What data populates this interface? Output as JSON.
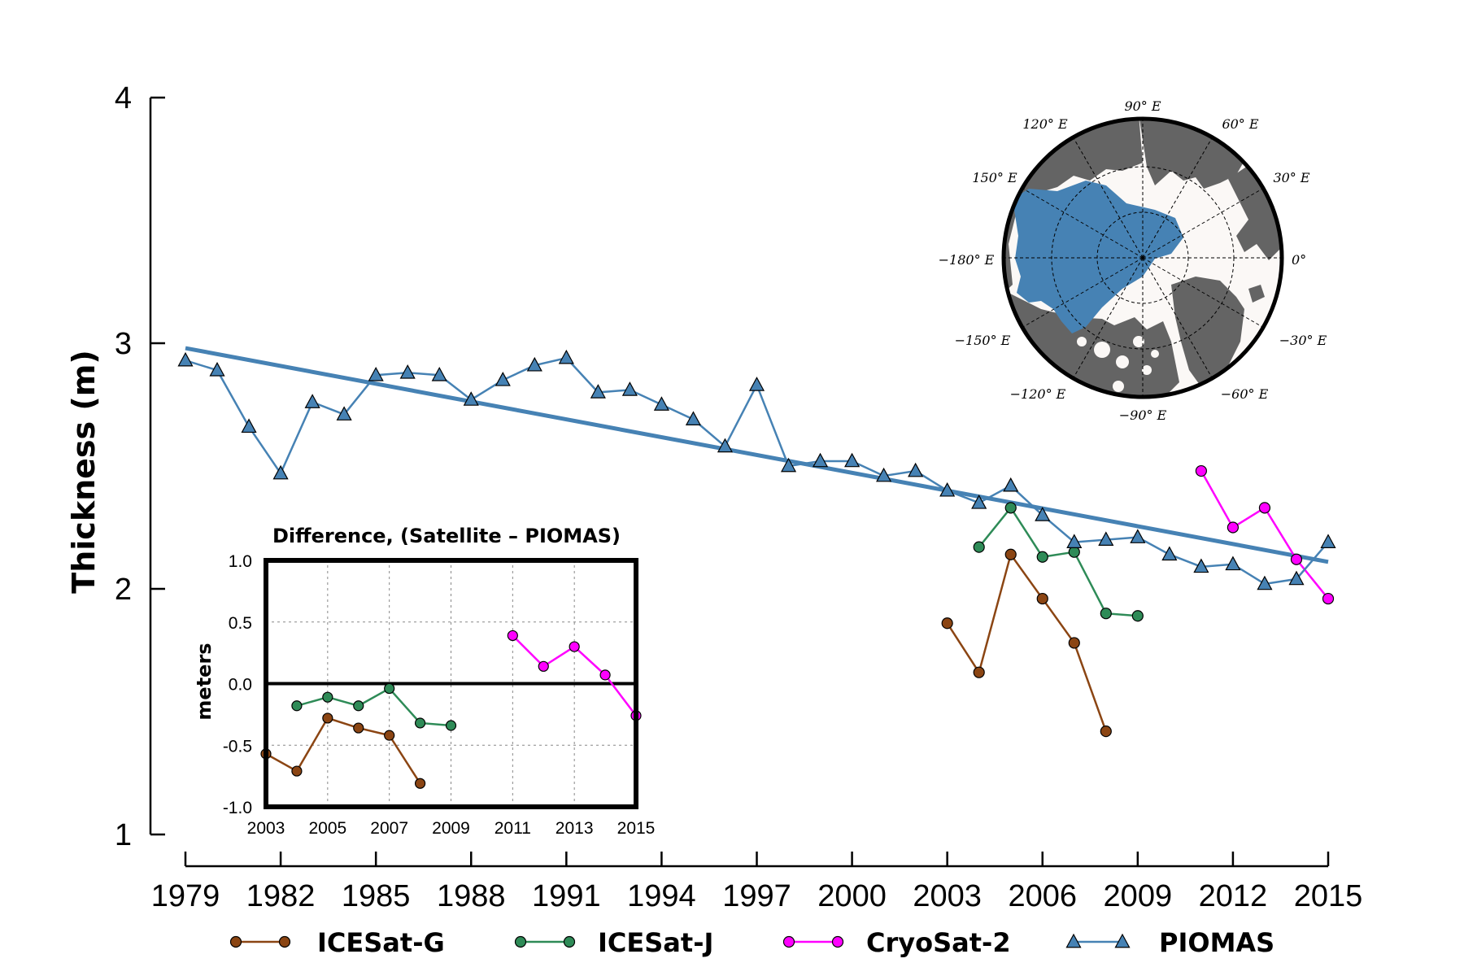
{
  "colors": {
    "piomas": "#4682b4",
    "icesat_g": "#8b4513",
    "icesat_j": "#2e8b57",
    "cryosat": "#ff00ff",
    "land": "#646464",
    "ocean": "#fbf8f6",
    "ice": "#4682b4"
  },
  "chart_data": [
    {
      "type": "line",
      "xlabel": "",
      "ylabel": "Thickness (m)",
      "xlim": [
        1979,
        2015
      ],
      "ylim": [
        1,
        4
      ],
      "xticks": [
        "1979",
        "1982",
        "1985",
        "1988",
        "1991",
        "1994",
        "1997",
        "2000",
        "2003",
        "2006",
        "2009",
        "2012",
        "2015"
      ],
      "yticks": [
        "1",
        "2",
        "3",
        "4"
      ],
      "trend": {
        "x": [
          1979,
          2015
        ],
        "y": [
          2.98,
          2.11
        ]
      },
      "series": [
        {
          "name": "ICESat-G",
          "marker": "circle",
          "x": [
            2003,
            2004,
            2005,
            2006,
            2007,
            2008
          ],
          "y": [
            1.86,
            1.66,
            2.14,
            1.96,
            1.78,
            1.42
          ]
        },
        {
          "name": "ICESat-J",
          "marker": "circle",
          "x": [
            2004,
            2005,
            2006,
            2007,
            2008,
            2009
          ],
          "y": [
            2.17,
            2.33,
            2.13,
            2.15,
            1.9,
            1.89
          ]
        },
        {
          "name": "CryoSat-2",
          "marker": "circle",
          "x": [
            2011,
            2012,
            2013,
            2014,
            2015
          ],
          "y": [
            2.48,
            2.25,
            2.33,
            2.12,
            1.96
          ]
        },
        {
          "name": "PIOMAS",
          "marker": "triangle",
          "x": [
            1979,
            1980,
            1981,
            1982,
            1983,
            1984,
            1985,
            1986,
            1987,
            1988,
            1989,
            1990,
            1991,
            1992,
            1993,
            1994,
            1995,
            1996,
            1997,
            1998,
            1999,
            2000,
            2001,
            2002,
            2003,
            2004,
            2005,
            2006,
            2007,
            2008,
            2009,
            2010,
            2011,
            2012,
            2013,
            2014,
            2015
          ],
          "y": [
            2.93,
            2.89,
            2.66,
            2.47,
            2.76,
            2.71,
            2.87,
            2.88,
            2.87,
            2.77,
            2.85,
            2.91,
            2.94,
            2.8,
            2.81,
            2.75,
            2.69,
            2.58,
            2.83,
            2.5,
            2.52,
            2.52,
            2.46,
            2.48,
            2.4,
            2.35,
            2.42,
            2.3,
            2.19,
            2.2,
            2.21,
            2.14,
            2.09,
            2.1,
            2.02,
            2.04,
            2.19
          ]
        }
      ],
      "legend": {
        "position": "bottom",
        "entries": [
          "ICESat-G",
          "ICESat-J",
          "CryoSat-2",
          "PIOMAS"
        ]
      }
    },
    {
      "type": "line",
      "title": "Difference, (Satellite – PIOMAS)",
      "ylabel": "meters",
      "xlim": [
        2003,
        2015
      ],
      "ylim": [
        -1.0,
        1.0
      ],
      "grid": true,
      "xticks": [
        "2003",
        "2005",
        "2007",
        "2009",
        "2011",
        "2013",
        "2015"
      ],
      "yticks": [
        "1.0",
        "0.5",
        "0.0",
        "-0.5",
        "-1.0"
      ],
      "series": [
        {
          "name": "ICESat-G",
          "x": [
            2003,
            2004,
            2005,
            2006,
            2007,
            2008
          ],
          "y": [
            -0.57,
            -0.71,
            -0.28,
            -0.36,
            -0.42,
            -0.81
          ]
        },
        {
          "name": "ICESat-J",
          "x": [
            2004,
            2005,
            2006,
            2007,
            2008,
            2009
          ],
          "y": [
            -0.18,
            -0.11,
            -0.18,
            -0.04,
            -0.32,
            -0.34
          ]
        },
        {
          "name": "CryoSat-2",
          "x": [
            2011,
            2012,
            2013,
            2014,
            2015
          ],
          "y": [
            0.39,
            0.14,
            0.3,
            0.07,
            -0.26
          ]
        }
      ]
    }
  ],
  "map": {
    "labels": [
      "90° E",
      "120° E",
      "60° E",
      "150° E",
      "30° E",
      "−180° E",
      "0°",
      "−150° E",
      "−30° E",
      "−120° E",
      "−60° E",
      "−90° E"
    ]
  }
}
